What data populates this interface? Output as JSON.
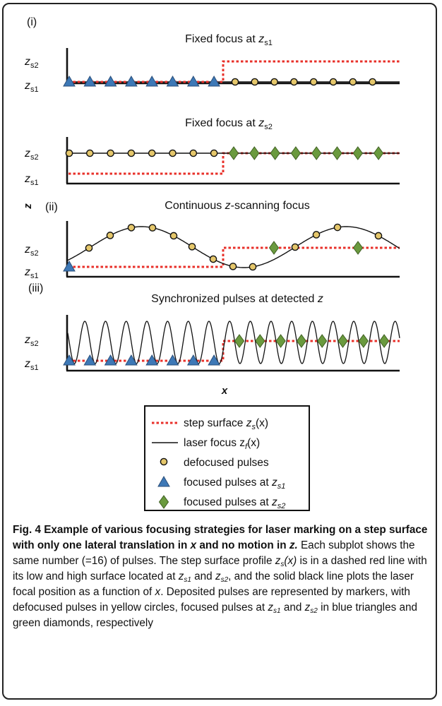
{
  "panels": [
    {
      "label": "(i)",
      "title": "Fixed focus at ",
      "title_var": "z",
      "title_sub": "s1",
      "ticks": [
        {
          "var": "z",
          "sub": "s2"
        },
        {
          "var": "z",
          "sub": "s1"
        }
      ]
    },
    {
      "label": "",
      "title": "Fixed focus at ",
      "title_var": "z",
      "title_sub": "s2",
      "ticks": [
        {
          "var": "z",
          "sub": "s2"
        },
        {
          "var": "z",
          "sub": "s1"
        }
      ]
    },
    {
      "label": "(ii)",
      "title_pre": "Continuous ",
      "title_var": "z",
      "title_post": "-scanning focus",
      "ticks": [
        {
          "var": "z",
          "sub": "s2"
        },
        {
          "var": "z",
          "sub": "s1"
        }
      ]
    },
    {
      "label": "(iii)",
      "title_pre": "Synchronized pulses at detected ",
      "title_var": "z",
      "ticks": [
        {
          "var": "z",
          "sub": "s2"
        },
        {
          "var": "z",
          "sub": "s1"
        }
      ]
    }
  ],
  "axes": {
    "y_label": "z",
    "x_label": "x"
  },
  "legend": {
    "step_surface": {
      "text": "step surface ",
      "var": "z",
      "sub": "s",
      "arg": "(x)"
    },
    "laser_focus": {
      "text": "laser focus z",
      "sub": "f",
      "arg": "(x)"
    },
    "defocused": {
      "text": "defocused pulses"
    },
    "focused_s1": {
      "text": "focused pulses at ",
      "var": "z",
      "sub": "s1"
    },
    "focused_s2": {
      "text": "focused pulses at ",
      "var": "z",
      "sub": "s2"
    }
  },
  "colors": {
    "step": "#e8302a",
    "focus": "#111111",
    "circle_fill": "#e5c76b",
    "triangle_fill": "#3d78b6",
    "diamond_fill": "#6a9a3e"
  },
  "caption": {
    "title": "Fig. 4 Example of various focusing strategies for laser marking on a step surface with only one lateral translation in ",
    "title_x": "x",
    "title_mid": " and no motion in ",
    "title_z": "z.",
    "s1": " Each subplot shows the same number (=16) of pulses. The step surface profile ",
    "zs": "z",
    "zs_sub": "s",
    "zs_arg": "(x)",
    "s2": " is in a dashed red line with its low and high surface located at ",
    "z1": "z",
    "z1_sub": "s1",
    "s3": " and ",
    "z2": "z",
    "z2_sub": "s2",
    "s4": ", and the solid black line plots the laser focal position as a function of ",
    "xv": "x",
    "s5": ". Deposited pulses are represented by markers, with defocused pulses in yellow circles, focused pulses at ",
    "z3": "z",
    "z3_sub": "s1",
    "s6": " and ",
    "z4": "z",
    "z4_sub": "s2",
    "s7": " in blue triangles and green diamonds, respectively"
  }
}
